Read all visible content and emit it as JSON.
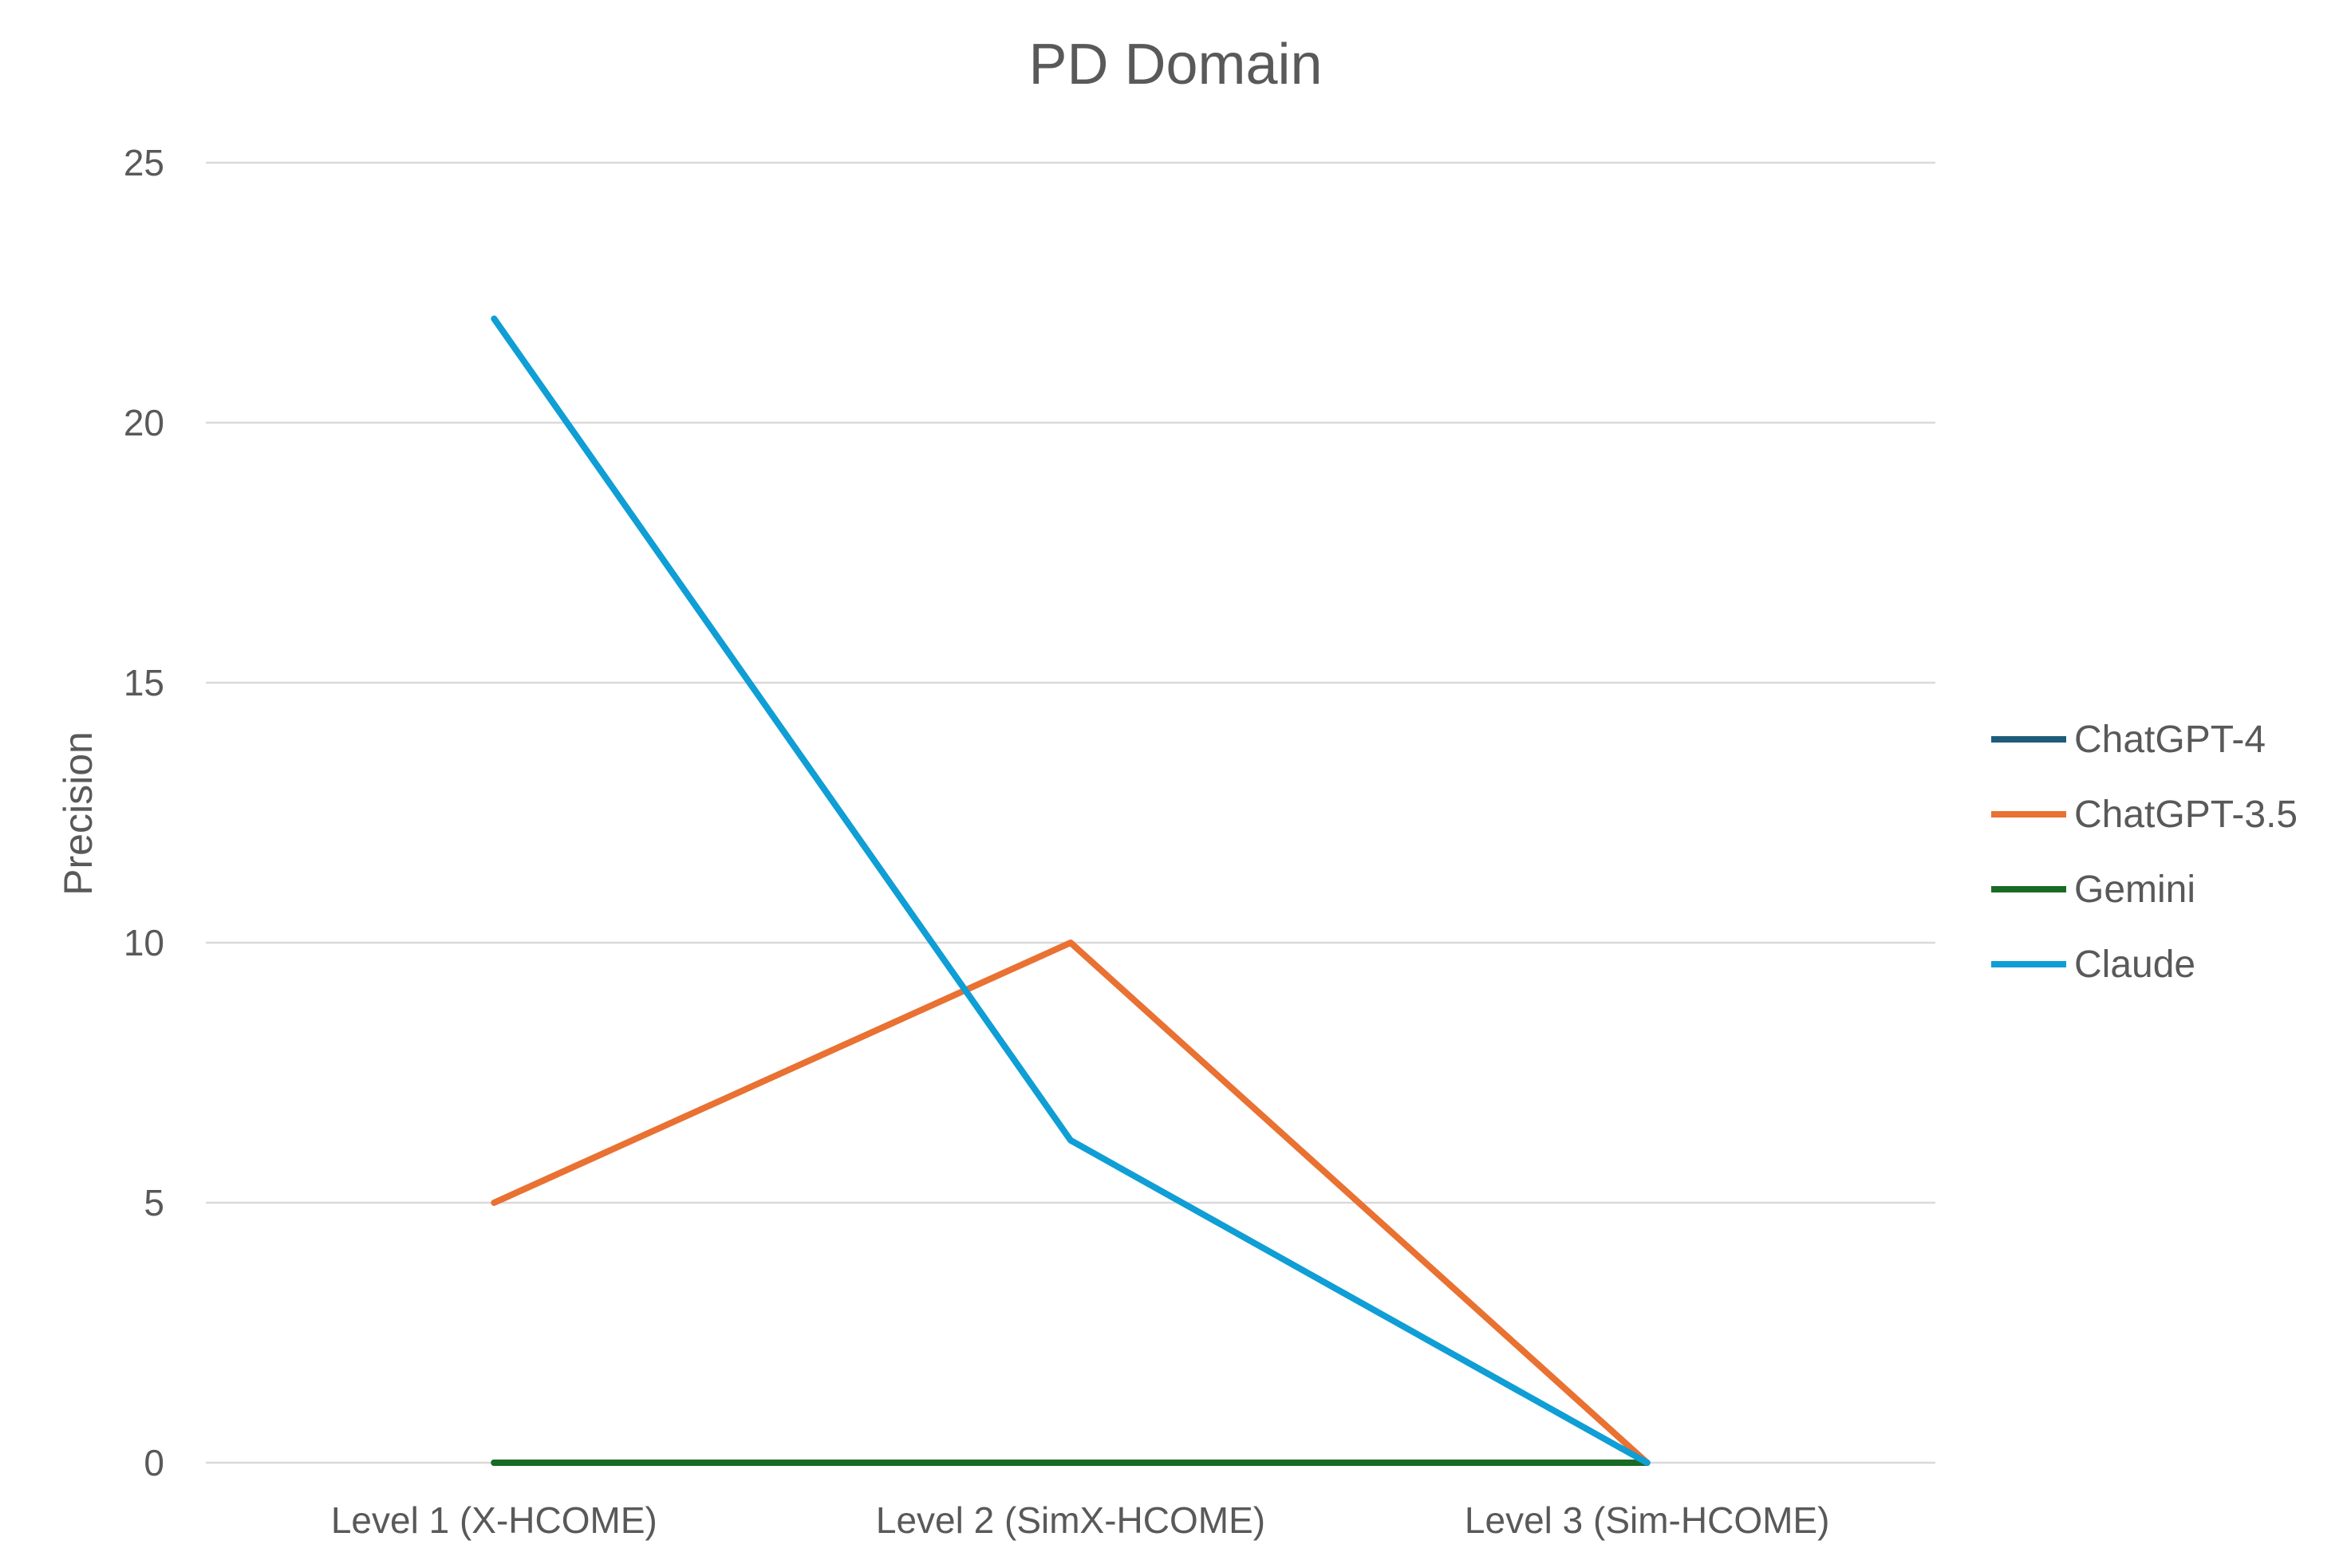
{
  "chart_data": {
    "type": "line",
    "title": "PD Domain",
    "ylabel": "Precision",
    "xlabel": "",
    "categories": [
      "Level 1 (X-HCOME)",
      "Level 2 (SimX-HCOME)",
      "Level 3 (Sim-HCOME)"
    ],
    "ylim": [
      0,
      25
    ],
    "yticks": [
      "0",
      "5",
      "10",
      "15",
      "20",
      "25"
    ],
    "grid": "horizontal",
    "legend_position": "right",
    "series": [
      {
        "name": "ChatGPT-4",
        "color": "#1F5C7A",
        "values": [
          0,
          0,
          0
        ]
      },
      {
        "name": "ChatGPT-3.5",
        "color": "#E97132",
        "values": [
          5,
          10,
          0
        ]
      },
      {
        "name": "Gemini",
        "color": "#196B24",
        "values": [
          0,
          0,
          0
        ]
      },
      {
        "name": "Claude",
        "color": "#0F9ED5",
        "values": [
          22,
          6.2,
          0
        ]
      }
    ]
  }
}
